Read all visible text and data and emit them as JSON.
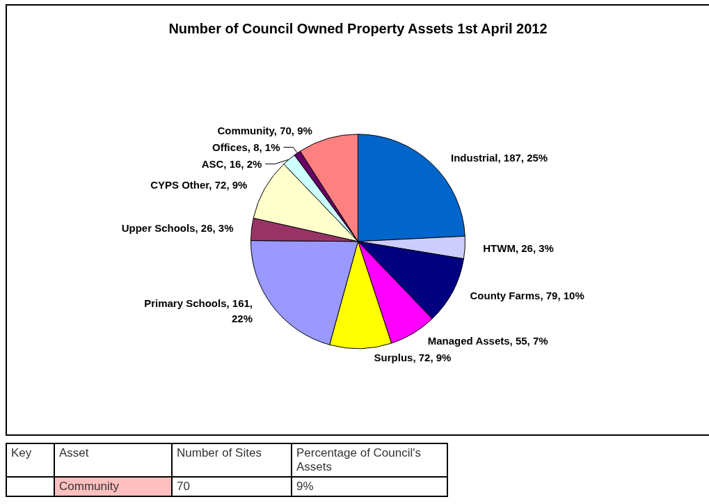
{
  "chart_data": {
    "type": "pie",
    "title": "Number of Council Owned Property Assets 1st April 2012",
    "categories": [
      "Industrial, 187, 25%",
      "HTWM, 26, 3%",
      "County Farms, 79, 10%",
      "Managed Assets, 55, 7%",
      "Surplus, 72, 9%",
      "Primary Schools, 161,\n22%",
      "Upper Schools, 26, 3%",
      "CYPS Other, 72, 9%",
      "ASC, 16, 2%",
      "Offices, 8, 1%",
      "Community, 70, 9%"
    ],
    "values": [
      187,
      26,
      79,
      55,
      72,
      161,
      26,
      72,
      16,
      8,
      70
    ],
    "colors": [
      "#0066cc",
      "#ccccff",
      "#000080",
      "#ff00ff",
      "#ffff00",
      "#9999ff",
      "#993366",
      "#ffffcc",
      "#ccffff",
      "#660066",
      "#ff8080"
    ],
    "annotations": [
      "Key",
      "Asset",
      "Number of Sites",
      "Percentage of Council's Assets",
      "Community",
      "70",
      "9%"
    ],
    "legend": false
  }
}
